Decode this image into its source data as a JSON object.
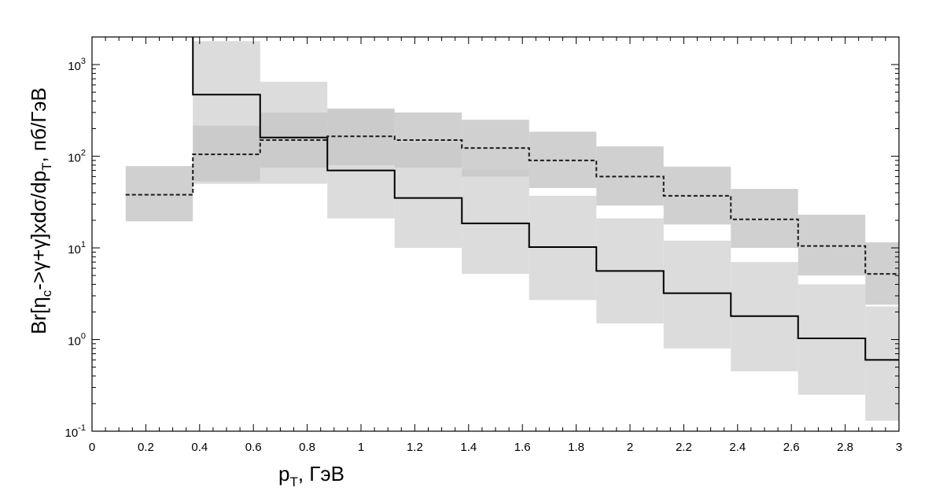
{
  "chart_data": {
    "type": "line",
    "xlabel": {
      "main": "p",
      "sub": "T",
      "rest": ", ГэВ"
    },
    "ylabel": {
      "p1": "Br[η",
      "s1": "c",
      "p2": "->γ+γ]xdσ/dp",
      "s2": "T",
      "p3": ", пб/ГэВ"
    },
    "xlim": [
      0,
      3
    ],
    "ylim": [
      0.1,
      2000
    ],
    "yscale": "log",
    "grid": false,
    "x_ticks": [
      {
        "value": 0,
        "label": "0"
      },
      {
        "value": 0.2,
        "label": "0.2"
      },
      {
        "value": 0.4,
        "label": "0.4"
      },
      {
        "value": 0.6,
        "label": "0.6"
      },
      {
        "value": 0.8,
        "label": "0.8"
      },
      {
        "value": 1,
        "label": "1"
      },
      {
        "value": 1.2,
        "label": "1.2"
      },
      {
        "value": 1.4,
        "label": "1.4"
      },
      {
        "value": 1.6,
        "label": "1.6"
      },
      {
        "value": 1.8,
        "label": "1.8"
      },
      {
        "value": 2,
        "label": "2"
      },
      {
        "value": 2.2,
        "label": "2.2"
      },
      {
        "value": 2.4,
        "label": "2.4"
      },
      {
        "value": 2.6,
        "label": "2.6"
      },
      {
        "value": 2.8,
        "label": "2.8"
      },
      {
        "value": 3,
        "label": "3"
      }
    ],
    "y_ticks": [
      {
        "value": 0.1,
        "base": "10",
        "exp": "-1"
      },
      {
        "value": 1,
        "base": "10",
        "exp": "0"
      },
      {
        "value": 10,
        "base": "10",
        "exp": "1"
      },
      {
        "value": 100,
        "base": "10",
        "exp": "2"
      },
      {
        "value": 1000,
        "base": "10",
        "exp": "3"
      }
    ],
    "series": [
      {
        "style": "solid",
        "line_color": "#000000",
        "band_color": "#dcdcdc",
        "bins": [
          {
            "x0": 0.375,
            "x1": 0.625,
            "y": 470,
            "lo": 50,
            "hi": 1800
          },
          {
            "x0": 0.625,
            "x1": 0.875,
            "y": 160,
            "lo": 50,
            "hi": 650
          },
          {
            "x0": 0.875,
            "x1": 1.125,
            "y": 70,
            "lo": 21,
            "hi": 330
          },
          {
            "x0": 1.125,
            "x1": 1.375,
            "y": 35,
            "lo": 10,
            "hi": 140
          },
          {
            "x0": 1.375,
            "x1": 1.625,
            "y": 18.5,
            "lo": 5.2,
            "hi": 72
          },
          {
            "x0": 1.625,
            "x1": 1.875,
            "y": 10.2,
            "lo": 2.7,
            "hi": 37
          },
          {
            "x0": 1.875,
            "x1": 2.125,
            "y": 5.6,
            "lo": 1.5,
            "hi": 21
          },
          {
            "x0": 2.125,
            "x1": 2.375,
            "y": 3.2,
            "lo": 0.8,
            "hi": 12
          },
          {
            "x0": 2.375,
            "x1": 2.625,
            "y": 1.8,
            "lo": 0.45,
            "hi": 7
          },
          {
            "x0": 2.625,
            "x1": 2.875,
            "y": 1.03,
            "lo": 0.25,
            "hi": 4
          },
          {
            "x0": 2.875,
            "x1": 3.0,
            "y": 0.6,
            "lo": 0.13,
            "hi": 2.3
          }
        ]
      },
      {
        "style": "dashed",
        "line_color": "#1a1a1a",
        "band_color": "#c8c8c8",
        "bins": [
          {
            "x0": 0.125,
            "x1": 0.375,
            "y": 38,
            "lo": 19.5,
            "hi": 78
          },
          {
            "x0": 0.375,
            "x1": 0.625,
            "y": 105,
            "lo": 53,
            "hi": 215
          },
          {
            "x0": 0.625,
            "x1": 0.875,
            "y": 150,
            "lo": 75,
            "hi": 300
          },
          {
            "x0": 0.875,
            "x1": 1.125,
            "y": 165,
            "lo": 80,
            "hi": 330
          },
          {
            "x0": 1.125,
            "x1": 1.375,
            "y": 150,
            "lo": 75,
            "hi": 300
          },
          {
            "x0": 1.375,
            "x1": 1.625,
            "y": 123,
            "lo": 60,
            "hi": 250
          },
          {
            "x0": 1.625,
            "x1": 1.875,
            "y": 90,
            "lo": 45,
            "hi": 185
          },
          {
            "x0": 1.875,
            "x1": 2.125,
            "y": 60,
            "lo": 29,
            "hi": 128
          },
          {
            "x0": 2.125,
            "x1": 2.375,
            "y": 37,
            "lo": 18,
            "hi": 77
          },
          {
            "x0": 2.375,
            "x1": 2.625,
            "y": 20.5,
            "lo": 10,
            "hi": 44
          },
          {
            "x0": 2.625,
            "x1": 2.875,
            "y": 10.5,
            "lo": 5,
            "hi": 23
          },
          {
            "x0": 2.875,
            "x1": 3.0,
            "y": 5.2,
            "lo": 2.4,
            "hi": 11.5
          }
        ]
      }
    ]
  }
}
